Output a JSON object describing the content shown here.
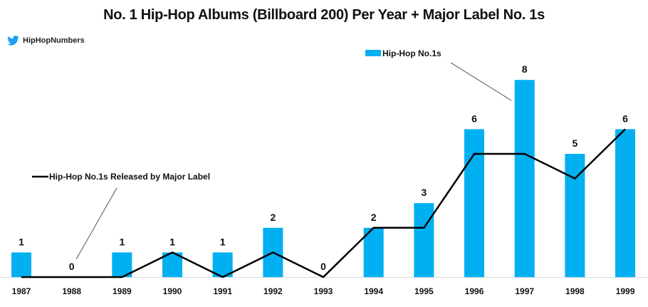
{
  "header": {
    "title": "No. 1 Hip-Hop Albums (Billboard 200) Per Year + Major Label No. 1s",
    "brand_handle": "HipHopNumbers",
    "brand_icon": "twitter-bird-icon"
  },
  "colors": {
    "bar": "#00B0F0",
    "line": "#000000",
    "axis": "#D9D9D9",
    "brand": "#1DA1F2"
  },
  "chart_data": {
    "type": "bar",
    "title": "No. 1 Hip-Hop Albums (Billboard 200) Per Year + Major Label No. 1s",
    "xlabel": "",
    "ylabel": "",
    "ylim": [
      0,
      8
    ],
    "grid": false,
    "categories": [
      "1987",
      "1988",
      "1989",
      "1990",
      "1991",
      "1992",
      "1993",
      "1994",
      "1995",
      "1996",
      "1997",
      "1998",
      "1999"
    ],
    "series": [
      {
        "name": "Hip-Hop No.1s",
        "type": "bar",
        "values": [
          1,
          0,
          1,
          1,
          1,
          2,
          0,
          2,
          3,
          6,
          8,
          5,
          6
        ],
        "data_labels": true
      },
      {
        "name": "Hip-Hop No.1s Released by Major Label",
        "type": "line",
        "values": [
          0,
          0,
          0,
          1,
          0,
          1,
          0,
          2,
          2,
          5,
          5,
          4,
          6
        ],
        "data_labels": false
      }
    ],
    "legend": [
      {
        "label": "Hip-Hop No.1s",
        "marker": "bar",
        "placement": "top-center, callout to 1997 bar"
      },
      {
        "label": "Hip-Hop No.1s Released by Major Label",
        "marker": "line",
        "placement": "left, callout to 1988 line point"
      }
    ]
  }
}
